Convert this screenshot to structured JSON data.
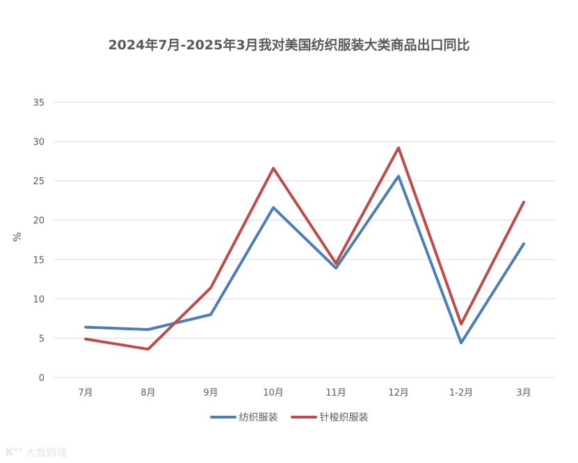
{
  "chart_data": {
    "type": "line",
    "title": "2024年7月-2025年3月我对美国纺织服装大类商品出口同比",
    "xlabel": "",
    "ylabel": "%",
    "ylim": [
      0,
      35
    ],
    "yticks": [
      0,
      5,
      10,
      15,
      20,
      25,
      30,
      35
    ],
    "grid": true,
    "legend_position": "bottom",
    "categories": [
      "7月",
      "8月",
      "9月",
      "10月",
      "11月",
      "12月",
      "1-2月",
      "3月"
    ],
    "series": [
      {
        "name": "纺织服装",
        "color": "#4a7ebb",
        "values": [
          6.4,
          6.1,
          8.0,
          21.6,
          13.9,
          25.6,
          4.4,
          17.0
        ]
      },
      {
        "name": "针梭织服装",
        "color": "#be4b48",
        "values": [
          4.9,
          3.6,
          11.4,
          26.6,
          14.5,
          29.2,
          6.8,
          22.3
        ]
      }
    ]
  },
  "watermark": {
    "logo": "K°°",
    "text": "大数跨境"
  }
}
